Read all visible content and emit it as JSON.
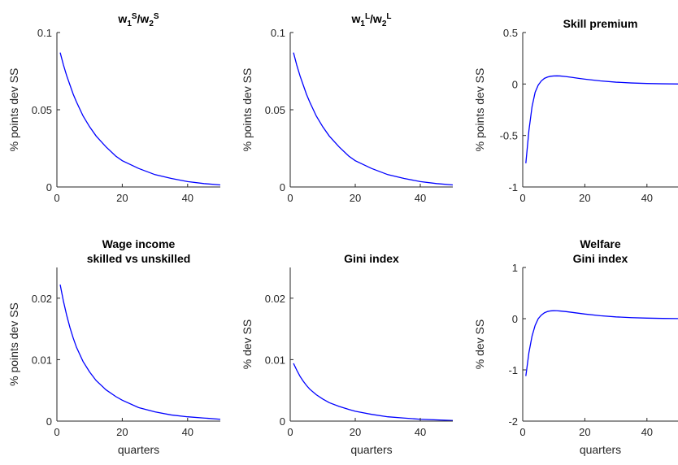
{
  "chart_data": [
    {
      "type": "line",
      "title": "w1S/w2S",
      "title_parts": [
        {
          "t": "w"
        },
        {
          "t": "1",
          "sub": true
        },
        {
          "t": "S",
          "sup": true
        },
        {
          "t": "/w"
        },
        {
          "t": "2",
          "sub": true
        },
        {
          "t": "S",
          "sup": true
        }
      ],
      "ylabel": "% points dev SS",
      "xlabel": "",
      "xlim": [
        0,
        50
      ],
      "ylim": [
        0,
        0.1
      ],
      "xticks": [
        0,
        20,
        40
      ],
      "xtick_labels": [
        "0",
        "20",
        "40"
      ],
      "yticks": [
        0,
        0.05,
        0.1
      ],
      "ytick_labels": [
        "0",
        "0.05",
        "0.1"
      ],
      "series": [
        {
          "color": "#0000ff",
          "x": [
            1,
            2,
            3,
            4,
            5,
            6,
            8,
            10,
            12,
            15,
            18,
            20,
            25,
            30,
            35,
            40,
            45,
            50
          ],
          "y": [
            0.087,
            0.079,
            0.072,
            0.066,
            0.06,
            0.055,
            0.046,
            0.039,
            0.033,
            0.026,
            0.02,
            0.017,
            0.012,
            0.008,
            0.0055,
            0.0035,
            0.0022,
            0.0013
          ]
        }
      ]
    },
    {
      "type": "line",
      "title": "w1L/w2L",
      "title_parts": [
        {
          "t": "w"
        },
        {
          "t": "1",
          "sub": true
        },
        {
          "t": "L",
          "sup": true
        },
        {
          "t": "/w"
        },
        {
          "t": "2",
          "sub": true
        },
        {
          "t": "L",
          "sup": true
        }
      ],
      "ylabel": "% points dev SS",
      "xlabel": "",
      "xlim": [
        0,
        50
      ],
      "ylim": [
        0,
        0.1
      ],
      "xticks": [
        0,
        20,
        40
      ],
      "xtick_labels": [
        "0",
        "20",
        "40"
      ],
      "yticks": [
        0,
        0.05,
        0.1
      ],
      "ytick_labels": [
        "0",
        "0.05",
        "0.1"
      ],
      "series": [
        {
          "color": "#0000ff",
          "x": [
            1,
            2,
            3,
            4,
            5,
            6,
            8,
            10,
            12,
            15,
            18,
            20,
            25,
            30,
            35,
            40,
            45,
            50
          ],
          "y": [
            0.087,
            0.079,
            0.072,
            0.066,
            0.06,
            0.055,
            0.046,
            0.039,
            0.033,
            0.026,
            0.02,
            0.017,
            0.012,
            0.008,
            0.0055,
            0.0035,
            0.0022,
            0.0013
          ]
        }
      ]
    },
    {
      "type": "line",
      "title": "Skill premium",
      "ylabel": "% points dev SS",
      "xlabel": "",
      "xlim": [
        0,
        50
      ],
      "ylim": [
        -1,
        0.5
      ],
      "xticks": [
        0,
        20,
        40
      ],
      "xtick_labels": [
        "0",
        "20",
        "40"
      ],
      "yticks": [
        -1,
        -0.5,
        0,
        0.5
      ],
      "ytick_labels": [
        "-1",
        "-0.5",
        "0",
        "0.5"
      ],
      "series": [
        {
          "color": "#0000ff",
          "x": [
            1,
            2,
            3,
            4,
            5,
            6,
            7,
            8,
            9,
            10,
            11,
            12,
            14,
            16,
            18,
            20,
            25,
            30,
            35,
            40,
            45,
            50
          ],
          "y": [
            -0.77,
            -0.45,
            -0.22,
            -0.08,
            -0.01,
            0.03,
            0.055,
            0.068,
            0.075,
            0.078,
            0.079,
            0.078,
            0.072,
            0.064,
            0.055,
            0.047,
            0.03,
            0.018,
            0.01,
            0.005,
            0.002,
            0.0
          ]
        }
      ]
    },
    {
      "type": "line",
      "title": "Wage income skilled vs unskilled",
      "title_lines": [
        "Wage income",
        "skilled vs unskilled"
      ],
      "ylabel": "% points dev SS",
      "xlabel": "quarters",
      "xlim": [
        0,
        50
      ],
      "ylim": [
        0,
        0.025
      ],
      "xticks": [
        0,
        20,
        40
      ],
      "xtick_labels": [
        "0",
        "20",
        "40"
      ],
      "yticks": [
        0,
        0.01,
        0.02
      ],
      "ytick_labels": [
        "0",
        "0.01",
        "0.02"
      ],
      "series": [
        {
          "color": "#0000ff",
          "x": [
            1,
            2,
            3,
            4,
            5,
            6,
            8,
            10,
            12,
            15,
            18,
            20,
            25,
            30,
            35,
            40,
            45,
            50
          ],
          "y": [
            0.0222,
            0.0195,
            0.0172,
            0.0152,
            0.0135,
            0.012,
            0.0097,
            0.008,
            0.0066,
            0.0051,
            0.004,
            0.0034,
            0.0022,
            0.0015,
            0.001,
            0.0007,
            0.0005,
            0.0003
          ]
        }
      ]
    },
    {
      "type": "line",
      "title": "Gini index",
      "ylabel": "% dev SS",
      "xlabel": "quarters",
      "xlim": [
        0,
        50
      ],
      "ylim": [
        0,
        0.025
      ],
      "xticks": [
        0,
        20,
        40
      ],
      "xtick_labels": [
        "0",
        "20",
        "40"
      ],
      "yticks": [
        0,
        0.01,
        0.02
      ],
      "ytick_labels": [
        "0",
        "0.01",
        "0.02"
      ],
      "series": [
        {
          "color": "#0000ff",
          "x": [
            1,
            2,
            3,
            4,
            5,
            6,
            8,
            10,
            12,
            15,
            18,
            20,
            25,
            30,
            35,
            40,
            45,
            50
          ],
          "y": [
            0.0094,
            0.0083,
            0.0073,
            0.0065,
            0.0058,
            0.0052,
            0.0043,
            0.0036,
            0.003,
            0.0024,
            0.0019,
            0.0016,
            0.0011,
            0.0007,
            0.0005,
            0.0003,
            0.0002,
            0.0001
          ]
        }
      ]
    },
    {
      "type": "line",
      "title": "Welfare Gini index",
      "title_lines": [
        "Welfare",
        "Gini index"
      ],
      "ylabel": "% dev SS",
      "xlabel": "quarters",
      "xlim": [
        0,
        50
      ],
      "ylim": [
        -2,
        1
      ],
      "xticks": [
        0,
        20,
        40
      ],
      "xtick_labels": [
        "0",
        "20",
        "40"
      ],
      "yticks": [
        -2,
        -1,
        0,
        1
      ],
      "ytick_labels": [
        "-2",
        "-1",
        "0",
        "1"
      ],
      "series": [
        {
          "color": "#0000ff",
          "x": [
            1,
            2,
            3,
            4,
            5,
            6,
            7,
            8,
            9,
            10,
            11,
            12,
            14,
            16,
            18,
            20,
            25,
            30,
            35,
            40,
            45,
            50
          ],
          "y": [
            -1.12,
            -0.66,
            -0.34,
            -0.13,
            0.0,
            0.07,
            0.115,
            0.14,
            0.152,
            0.156,
            0.155,
            0.15,
            0.138,
            0.122,
            0.106,
            0.09,
            0.058,
            0.035,
            0.02,
            0.011,
            0.005,
            0.002
          ]
        }
      ]
    }
  ]
}
